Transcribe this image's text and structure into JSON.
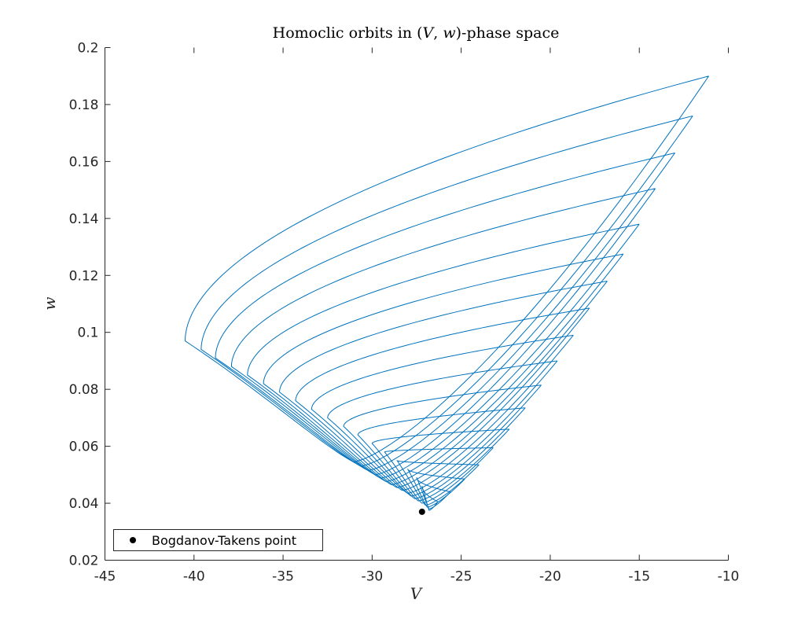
{
  "chart_data": {
    "type": "line",
    "title": "Homoclic orbits in (V, w)-phase space",
    "xlabel": "V",
    "ylabel": "w",
    "xlim": [
      -45,
      -10
    ],
    "ylim": [
      0.02,
      0.2
    ],
    "xticks": [
      "-45",
      "-40",
      "-35",
      "-30",
      "-25",
      "-20",
      "-15",
      "-10"
    ],
    "yticks": [
      "0.02",
      "0.04",
      "0.06",
      "0.08",
      "0.1",
      "0.12",
      "0.14",
      "0.16",
      "0.18",
      "0.2"
    ],
    "grid": false,
    "legend_position": "bottom-left",
    "series_color": "#0072BD",
    "marker_color": "#000000",
    "orbits": [
      {
        "vmin": -40.5,
        "w_left": 0.097,
        "w_min": 0.0545,
        "v_at_min": -31.0,
        "v_tip": -11.1,
        "w_tip": 0.19
      },
      {
        "vmin": -39.6,
        "w_left": 0.094,
        "w_min": 0.053,
        "v_at_min": -30.6,
        "v_tip": -12.0,
        "w_tip": 0.176
      },
      {
        "vmin": -38.8,
        "w_left": 0.091,
        "w_min": 0.0515,
        "v_at_min": -30.2,
        "v_tip": -13.0,
        "w_tip": 0.163
      },
      {
        "vmin": -37.9,
        "w_left": 0.088,
        "w_min": 0.05,
        "v_at_min": -29.8,
        "v_tip": -14.1,
        "w_tip": 0.1505
      },
      {
        "vmin": -37.0,
        "w_left": 0.085,
        "w_min": 0.0488,
        "v_at_min": -29.5,
        "v_tip": -15.0,
        "w_tip": 0.138
      },
      {
        "vmin": -36.1,
        "w_left": 0.082,
        "w_min": 0.0476,
        "v_at_min": -29.2,
        "v_tip": -15.9,
        "w_tip": 0.1275
      },
      {
        "vmin": -35.2,
        "w_left": 0.079,
        "w_min": 0.0465,
        "v_at_min": -28.9,
        "v_tip": -16.8,
        "w_tip": 0.118
      },
      {
        "vmin": -34.3,
        "w_left": 0.076,
        "w_min": 0.0455,
        "v_at_min": -28.6,
        "v_tip": -17.8,
        "w_tip": 0.1085
      },
      {
        "vmin": -33.4,
        "w_left": 0.073,
        "w_min": 0.0445,
        "v_at_min": -28.3,
        "v_tip": -18.7,
        "w_tip": 0.099
      },
      {
        "vmin": -32.5,
        "w_left": 0.07,
        "w_min": 0.0435,
        "v_at_min": -28.0,
        "v_tip": -19.6,
        "w_tip": 0.09
      },
      {
        "vmin": -31.6,
        "w_left": 0.067,
        "w_min": 0.0425,
        "v_at_min": -27.8,
        "v_tip": -20.5,
        "w_tip": 0.0815
      },
      {
        "vmin": -30.8,
        "w_left": 0.064,
        "w_min": 0.0416,
        "v_at_min": -27.6,
        "v_tip": -21.4,
        "w_tip": 0.0735
      },
      {
        "vmin": -30.0,
        "w_left": 0.061,
        "w_min": 0.0408,
        "v_at_min": -27.4,
        "v_tip": -22.3,
        "w_tip": 0.066
      },
      {
        "vmin": -29.3,
        "w_left": 0.058,
        "w_min": 0.04,
        "v_at_min": -27.2,
        "v_tip": -23.2,
        "w_tip": 0.0595
      },
      {
        "vmin": -28.6,
        "w_left": 0.055,
        "w_min": 0.0393,
        "v_at_min": -27.0,
        "v_tip": -24.0,
        "w_tip": 0.0535
      },
      {
        "vmin": -28.0,
        "w_left": 0.052,
        "w_min": 0.0386,
        "v_at_min": -26.9,
        "v_tip": -24.8,
        "w_tip": 0.0485
      },
      {
        "vmin": -27.5,
        "w_left": 0.049,
        "w_min": 0.038,
        "v_at_min": -26.8,
        "v_tip": -25.6,
        "w_tip": 0.044
      },
      {
        "vmin": -27.2,
        "w_left": 0.046,
        "w_min": 0.0375,
        "v_at_min": -26.8,
        "v_tip": -26.3,
        "w_tip": 0.0405
      }
    ],
    "bt_point": {
      "name": "Bogdanov-Takens point",
      "x": -27.2,
      "y": 0.037
    }
  }
}
